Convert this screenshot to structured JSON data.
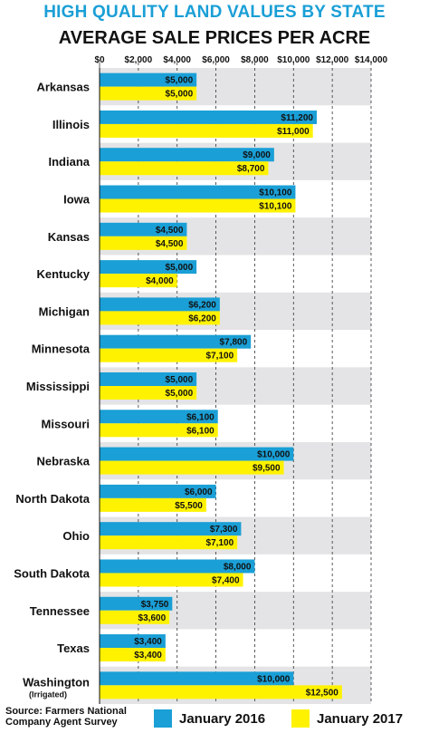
{
  "chart_data": {
    "type": "bar",
    "orientation": "horizontal",
    "title": "HIGH QUALITY LAND VALUES BY STATE",
    "subtitle": "AVERAGE SALE PRICES PER ACRE",
    "xlim": [
      0,
      14000
    ],
    "x_ticks": [
      "$0",
      "$2,000",
      "$4,000",
      "$6,000",
      "$8,000",
      "$10,000",
      "$12,000",
      "$14,000"
    ],
    "grid": "vertical",
    "legend_position": "bottom",
    "categories": [
      "Arkansas",
      "Illinois",
      "Indiana",
      "Iowa",
      "Kansas",
      "Kentucky",
      "Michigan",
      "Minnesota",
      "Mississippi",
      "Missouri",
      "Nebraska",
      "North Dakota",
      "Ohio",
      "South Dakota",
      "Tennessee",
      "Texas",
      "Washington"
    ],
    "category_notes": {
      "Washington": "(Irrigated)"
    },
    "series": [
      {
        "name": "January 2016",
        "values": [
          5000,
          11200,
          9000,
          10100,
          4500,
          5000,
          6200,
          7800,
          5000,
          6100,
          10000,
          6000,
          7300,
          8000,
          3750,
          3400,
          10000
        ],
        "labels": [
          "$5,000",
          "$11,200",
          "$9,000",
          "$10,100",
          "$4,500",
          "$5,000",
          "$6,200",
          "$7,800",
          "$5,000",
          "$6,100",
          "$10,000",
          "$6,000",
          "$7,300",
          "$8,000",
          "$3,750",
          "$3,400",
          "$10,000"
        ]
      },
      {
        "name": "January 2017",
        "values": [
          5000,
          11000,
          8700,
          10100,
          4500,
          4000,
          6200,
          7100,
          5000,
          6100,
          9500,
          5500,
          7100,
          7400,
          3600,
          3400,
          12500
        ],
        "labels": [
          "$5,000",
          "$11,000",
          "$8,700",
          "$10,100",
          "$4,500",
          "$4,000",
          "$6,200",
          "$7,100",
          "$5,000",
          "$6,100",
          "$9,500",
          "$5,500",
          "$7,100",
          "$7,400",
          "$3,600",
          "$3,400",
          "$12,500"
        ]
      }
    ]
  },
  "colors": {
    "title": "#1a9fd6",
    "series_2016": "#1a9fd6",
    "series_2017": "#fff200",
    "stripe": "#e4e4e6",
    "grid": "#333333"
  },
  "source": "Source: Farmers National Company Agent Survey",
  "legend": {
    "item_2016": "January 2016",
    "item_2017": "January 2017"
  }
}
